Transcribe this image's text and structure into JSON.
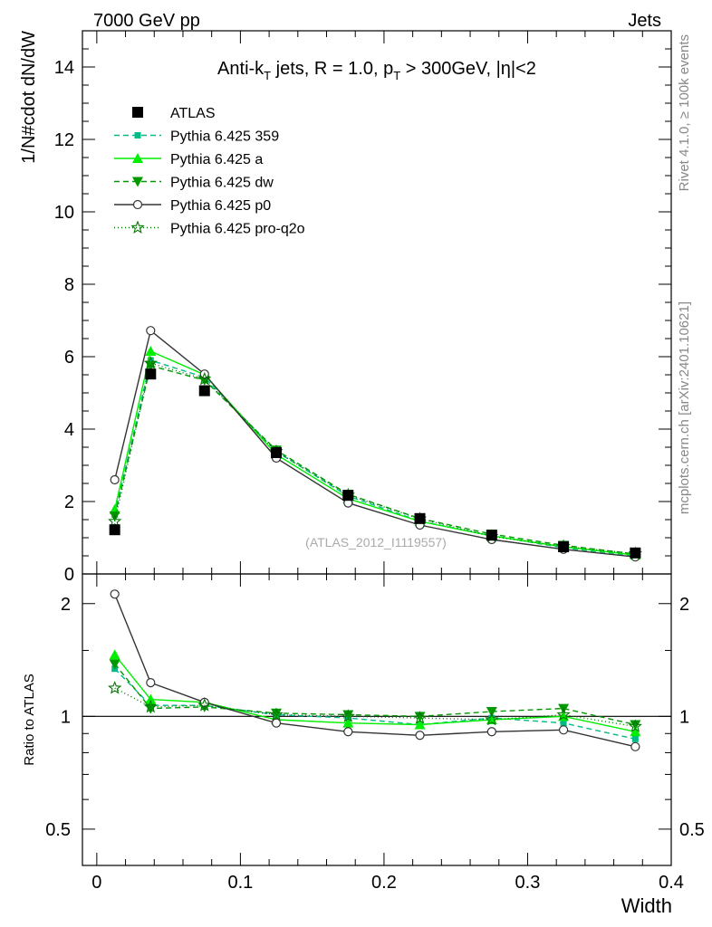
{
  "header": {
    "left": "7000 GeV pp",
    "right": "Jets"
  },
  "side": {
    "rivet": "Rivet 4.1.0, ≥ 100k events",
    "mcplots": "mcplots.cern.ch [arXiv:2401.10621]"
  },
  "chart_data": {
    "type": "line",
    "title": "Anti-k_T jets, R = 1.0, p_T > 300GeV, |η|<2",
    "title_parts": {
      "a": "Anti-k",
      "a_sub": "T",
      "b": " jets, R = 1.0, p",
      "b_sub": "T",
      "c": " > 300GeV, |η|<2"
    },
    "watermark": "(ATLAS_2012_I1119557)",
    "xlabel": "Width",
    "ylabel": "1/N#cdot dN/dW",
    "ratio_ylabel": "Ratio to ATLAS",
    "xlim": [
      -0.01,
      0.4
    ],
    "ylim": [
      0,
      15
    ],
    "ratio_ylim": [
      0.4,
      2.4
    ],
    "x_ticks": [
      "0",
      "0.1",
      "0.2",
      "0.3",
      "0.4"
    ],
    "x_tick_values": [
      0,
      0.1,
      0.2,
      0.3,
      0.4
    ],
    "y_ticks": [
      "0",
      "2",
      "4",
      "6",
      "8",
      "10",
      "12",
      "14"
    ],
    "y_tick_values": [
      0,
      2,
      4,
      6,
      8,
      10,
      12,
      14
    ],
    "ratio_ticks": [
      "0.5",
      "1",
      "2"
    ],
    "ratio_tick_values": [
      0.5,
      1,
      2
    ],
    "x": [
      0.0125,
      0.0375,
      0.075,
      0.125,
      0.175,
      0.225,
      0.275,
      0.325,
      0.375
    ],
    "series": [
      {
        "name": "ATLAS",
        "color": "#000000",
        "marker": "square",
        "dash": "",
        "values": [
          1.22,
          5.52,
          5.06,
          3.35,
          2.17,
          1.53,
          1.07,
          0.75,
          0.58
        ],
        "ratio": [
          1,
          1,
          1,
          1,
          1,
          1,
          1,
          1,
          1
        ]
      },
      {
        "name": "Pythia 6.425 359",
        "color": "#00bb88",
        "marker": "smallsquare",
        "dash": "6,4",
        "values": [
          1.64,
          5.9,
          5.43,
          3.38,
          2.15,
          1.46,
          1.06,
          0.72,
          0.5
        ],
        "ratio": [
          1.34,
          1.07,
          1.07,
          1.01,
          0.99,
          0.95,
          0.99,
          0.96,
          0.87
        ]
      },
      {
        "name": "Pythia 6.425 a",
        "color": "#00ee00",
        "marker": "triangle-up",
        "dash": "",
        "values": [
          1.78,
          6.15,
          5.5,
          3.3,
          2.08,
          1.45,
          1.05,
          0.75,
          0.52
        ],
        "ratio": [
          1.46,
          1.11,
          1.09,
          0.98,
          0.96,
          0.95,
          0.98,
          1.0,
          0.91
        ]
      },
      {
        "name": "Pythia 6.425 dw",
        "color": "#009900",
        "marker": "triangle-down",
        "dash": "6,4",
        "values": [
          1.6,
          5.75,
          5.35,
          3.42,
          2.2,
          1.53,
          1.1,
          0.79,
          0.55
        ],
        "ratio": [
          1.38,
          1.05,
          1.06,
          1.02,
          1.01,
          1.0,
          1.03,
          1.05,
          0.95
        ]
      },
      {
        "name": "Pythia 6.425 p0",
        "color": "#333333",
        "marker": "circle",
        "dash": "",
        "values": [
          2.6,
          6.72,
          5.52,
          3.2,
          1.96,
          1.35,
          0.95,
          0.68,
          0.47
        ],
        "ratio": [
          2.12,
          1.23,
          1.09,
          0.96,
          0.91,
          0.89,
          0.91,
          0.92,
          0.83
        ]
      },
      {
        "name": "Pythia 6.425 pro-q2o",
        "color": "#007700",
        "marker": "star",
        "dash": "1,3",
        "values": [
          1.45,
          5.82,
          5.38,
          3.38,
          2.18,
          1.52,
          1.04,
          0.76,
          0.56
        ],
        "ratio": [
          1.19,
          1.06,
          1.07,
          1.01,
          1.0,
          0.99,
          0.98,
          1.01,
          0.94
        ]
      }
    ]
  }
}
